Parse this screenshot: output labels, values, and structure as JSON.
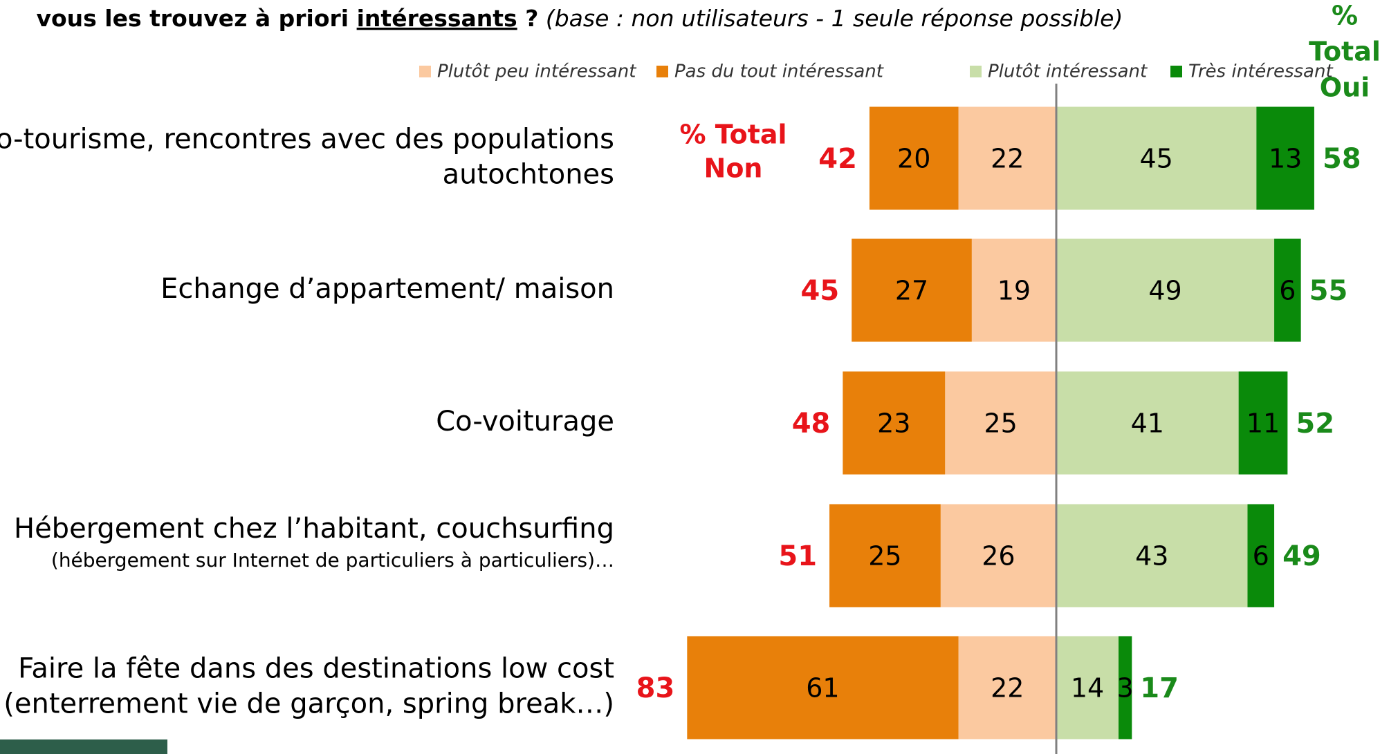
{
  "chart_data": {
    "type": "diverging-bar",
    "title": [
      "vous les trouvez à priori ",
      "intéressants",
      " ?"
    ],
    "subtitle": "(base : non utilisateurs - 1 seule réponse possible)",
    "categories": [
      [
        "Eco-tourisme, rencontres avec des populations",
        "autochtones"
      ],
      [
        "Echange d’appartement/ maison"
      ],
      [
        "Co-voiturage"
      ],
      [
        "Hébergement chez l’habitant, couchsurfing"
      ],
      [
        "Faire la fête dans des destinations low cost",
        "(enterrement vie de garçon, spring break…)"
      ]
    ],
    "category_notes": [
      null,
      null,
      null,
      "(hébergement sur Internet de particuliers à particuliers)…",
      null
    ],
    "series": [
      {
        "name": "Plutôt peu intéressant",
        "color": "#fbc9a0",
        "values": [
          22,
          19,
          25,
          26,
          22
        ]
      },
      {
        "name": "Pas du tout intéressant",
        "color": "#e8800a",
        "values": [
          20,
          27,
          23,
          25,
          61
        ]
      },
      {
        "name": "Plutôt intéressant",
        "color": "#c8dea8",
        "values": [
          45,
          49,
          41,
          43,
          14
        ]
      },
      {
        "name": "Très intéressant",
        "color": "#0a8a0a",
        "values": [
          13,
          6,
          11,
          6,
          3
        ]
      }
    ],
    "total_non_label": [
      "% Total",
      "Non"
    ],
    "total_non": [
      42,
      45,
      48,
      51,
      83
    ],
    "total_non_color": "#e8141a",
    "total_oui_label": [
      "%",
      "Total",
      "Oui"
    ],
    "total_oui": [
      58,
      55,
      52,
      49,
      17
    ],
    "total_oui_color": "#1a8a1a"
  }
}
